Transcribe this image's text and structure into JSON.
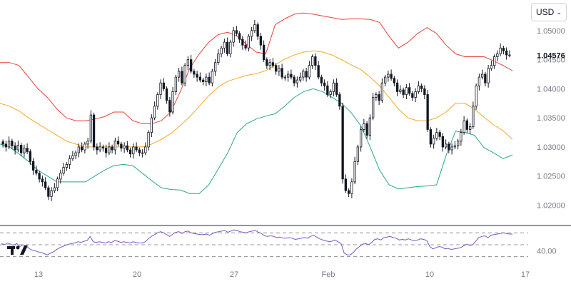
{
  "currency": {
    "label": "USD"
  },
  "logo": {
    "name": "tradingview-logo"
  },
  "price": {
    "last": "1.04576"
  },
  "colors": {
    "upper_band": "#e8403a",
    "lower_band": "#2aa889",
    "mid_band": "#f5a623",
    "rsi": "#7e57c2",
    "candle": "#131722",
    "axis_text": "#787b86",
    "grid_dash": "#787b86"
  },
  "rsi": {
    "label": "40.00",
    "level": 40
  },
  "chart_data": {
    "type": "candlestick",
    "y_axis_ticks": [
      "1.05000",
      "1.04500",
      "1.04000",
      "1.03500",
      "1.03000",
      "1.02500",
      "1.02000"
    ],
    "x_axis_ticks": [
      "13",
      "20",
      "27",
      "Feb",
      "10",
      "17"
    ],
    "ylim": [
      1.017,
      1.055
    ],
    "indicators": [
      "Bollinger Bands",
      "RSI"
    ],
    "close_series": [
      1.0305,
      1.03,
      1.031,
      1.0302,
      1.0295,
      1.0303,
      1.029,
      1.0298,
      1.0292,
      1.0275,
      1.026,
      1.0255,
      1.0245,
      1.024,
      1.023,
      1.0215,
      1.0225,
      1.023,
      1.0245,
      1.0255,
      1.0265,
      1.027,
      1.028,
      1.0285,
      1.029,
      1.03,
      1.0295,
      1.0305,
      1.031,
      1.0355,
      1.03,
      1.0295,
      1.03,
      1.0298,
      1.029,
      1.03,
      1.0295,
      1.031,
      1.0305,
      1.0298,
      1.0302,
      1.0295,
      1.0288,
      1.03,
      1.0295,
      1.029,
      1.029,
      1.03,
      1.0325,
      1.035,
      1.037,
      1.039,
      1.041,
      1.04,
      1.038,
      1.036,
      1.0395,
      1.042,
      1.043,
      1.041,
      1.044,
      1.045,
      1.043,
      1.0425,
      1.042,
      1.0415,
      1.0412,
      1.042,
      1.041,
      1.043,
      1.0445,
      1.046,
      1.047,
      1.048,
      1.046,
      1.048,
      1.05,
      1.0495,
      1.0485,
      1.0475,
      1.047,
      1.049,
      1.05,
      1.051,
      1.049,
      1.0475,
      1.045,
      1.044,
      1.0445,
      1.044,
      1.043,
      1.0435,
      1.042,
      1.042,
      1.0425,
      1.042,
      1.041,
      1.0415,
      1.042,
      1.043,
      1.042,
      1.044,
      1.0455,
      1.044,
      1.042,
      1.041,
      1.0405,
      1.039,
      1.0395,
      1.041,
      1.039,
      1.037,
      1.0245,
      1.0225,
      1.022,
      1.024,
      1.0275,
      1.03,
      1.033,
      1.034,
      1.032,
      1.035,
      1.0385,
      1.039,
      1.038,
      1.041,
      1.042,
      1.0425,
      1.0418,
      1.041,
      1.0395,
      1.0398,
      1.039,
      1.0402,
      1.0392,
      1.0385,
      1.0395,
      1.0405,
      1.04,
      1.039,
      1.033,
      1.0305,
      1.0315,
      1.0325,
      1.0318,
      1.03,
      1.0305,
      1.0295,
      1.03,
      1.0302,
      1.031,
      1.0325,
      1.0345,
      1.033,
      1.0335,
      1.037,
      1.0405,
      1.042,
      1.0425,
      1.041,
      1.0435,
      1.044,
      1.0455,
      1.046,
      1.047,
      1.0465,
      1.0458,
      1.0458
    ],
    "upper_band": [
      1.0445,
      1.0445,
      1.044,
      1.042,
      1.04,
      1.0385,
      1.0365,
      1.035,
      1.0345,
      1.0345,
      1.0348,
      1.0352,
      1.036,
      1.036,
      1.0345,
      1.034,
      1.034,
      1.0345,
      1.036,
      1.0395,
      1.0435,
      1.046,
      1.048,
      1.0493,
      1.0497,
      1.049,
      1.0476,
      1.0463,
      1.046,
      1.051,
      1.052,
      1.0528,
      1.053,
      1.0528,
      1.0525,
      1.0522,
      1.0519,
      1.052,
      1.052,
      1.0519,
      1.0514,
      1.049,
      1.047,
      1.048,
      1.0495,
      1.0505,
      1.0495,
      1.0475,
      1.046,
      1.0455,
      1.0455,
      1.0455,
      1.0448,
      1.044,
      1.0431
    ],
    "mid_band": [
      1.0375,
      1.037,
      1.0362,
      1.035,
      1.034,
      1.033,
      1.032,
      1.031,
      1.0305,
      1.03,
      1.03,
      1.03,
      1.03,
      1.03,
      1.03,
      1.03,
      1.0305,
      1.0313,
      1.0323,
      1.0337,
      1.0352,
      1.037,
      1.0388,
      1.0403,
      1.0413,
      1.0418,
      1.0423,
      1.0426,
      1.0431,
      1.0441,
      1.0451,
      1.0458,
      1.0463,
      1.0465,
      1.0463,
      1.0458,
      1.045,
      1.0441,
      1.0433,
      1.042,
      1.0405,
      1.0385,
      1.0365,
      1.035,
      1.0345,
      1.0345,
      1.035,
      1.036,
      1.0375,
      1.0375,
      1.0365,
      1.0351,
      1.0338,
      1.0328,
      1.0313
    ],
    "lower_band": [
      1.0305,
      1.03,
      1.0288,
      1.0275,
      1.026,
      1.025,
      1.024,
      1.024,
      1.024,
      1.024,
      1.025,
      1.026,
      1.0268,
      1.027,
      1.0268,
      1.0255,
      1.0242,
      1.023,
      1.0227,
      1.0226,
      1.022,
      1.022,
      1.0235,
      1.0262,
      1.029,
      1.0325,
      1.034,
      1.0348,
      1.0353,
      1.0357,
      1.037,
      1.0385,
      1.0395,
      1.04,
      1.0395,
      1.0385,
      1.0375,
      1.0359,
      1.0337,
      1.03,
      1.026,
      1.0235,
      1.0228,
      1.023,
      1.0232,
      1.0233,
      1.0235,
      1.0285,
      1.0327,
      1.0325,
      1.032,
      1.0299,
      1.029,
      1.028,
      1.0286
    ],
    "rsi_series": [
      52,
      50,
      53,
      51,
      49,
      52,
      47,
      50,
      48,
      44,
      41,
      40,
      38,
      37,
      35,
      33,
      36,
      38,
      42,
      45,
      47,
      49,
      51,
      52,
      53,
      55,
      54,
      56,
      57,
      64,
      55,
      54,
      55,
      54,
      53,
      55,
      54,
      57,
      56,
      54,
      55,
      54,
      53,
      55,
      54,
      53,
      53,
      55,
      60,
      64,
      67,
      70,
      72,
      70,
      67,
      64,
      68,
      71,
      72,
      69,
      72,
      73,
      70,
      69,
      68,
      67,
      67,
      68,
      66,
      69,
      71,
      72,
      73,
      74,
      71,
      73,
      75,
      74,
      72,
      71,
      70,
      72,
      73,
      74,
      71,
      69,
      65,
      64,
      65,
      64,
      62,
      63,
      61,
      61,
      62,
      61,
      59,
      60,
      61,
      62,
      61,
      64,
      66,
      63,
      60,
      58,
      57,
      55,
      56,
      58,
      55,
      52,
      36,
      33,
      33,
      37,
      43,
      47,
      51,
      52,
      50,
      54,
      59,
      60,
      58,
      62,
      63,
      64,
      62,
      61,
      58,
      59,
      58,
      60,
      58,
      57,
      58,
      60,
      59,
      57,
      47,
      43,
      45,
      47,
      46,
      43,
      44,
      42,
      43,
      44,
      45,
      48,
      51,
      49,
      50,
      56,
      62,
      64,
      65,
      62,
      66,
      67,
      68,
      69,
      70,
      69,
      68,
      68
    ]
  }
}
